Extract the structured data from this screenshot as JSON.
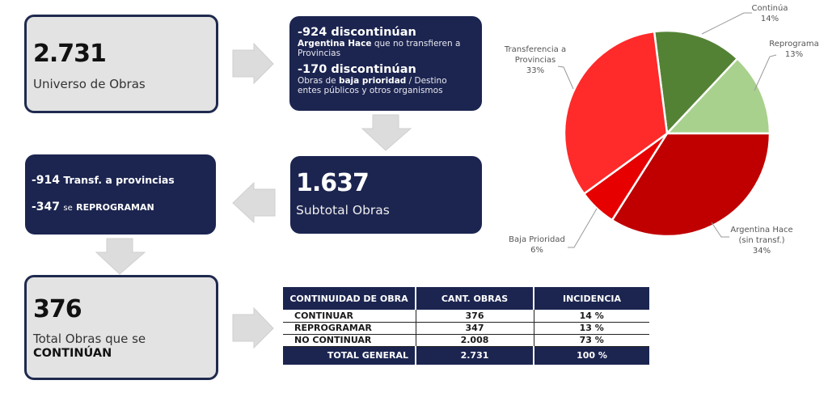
{
  "universe": {
    "value": "2.731",
    "label": "Universo de Obras"
  },
  "discontinued": {
    "item1": {
      "heading": "-924 discontinúan",
      "bold": "Argentina Hace",
      "rest1": " que no transfieren a",
      "rest2": "Provincias"
    },
    "item2": {
      "heading": "-170 discontinúan",
      "pre": "Obras de ",
      "bold": "baja prioridad",
      "rest1": " / Destino",
      "rest2": "entes públicos y otros organismos"
    }
  },
  "subtotal": {
    "value": "1.637",
    "label": "Subtotal Obras"
  },
  "adjustments": {
    "item1": {
      "number": "-914",
      "text": "Transf. a provincias"
    },
    "item2": {
      "number": "-347",
      "small": "se",
      "text": "REPROGRAMAN"
    }
  },
  "total": {
    "value": "376",
    "label": "Total Obras que se",
    "label_bold": "CONTINÚAN"
  },
  "table": {
    "headers": [
      "CONTINUIDAD DE OBRA",
      "CANT. OBRAS",
      "INCIDENCIA"
    ],
    "rows": [
      [
        "CONTINUAR",
        "376",
        "14 %"
      ],
      [
        "REPROGRAMAR",
        "347",
        "13 %"
      ],
      [
        "NO CONTINUAR",
        "2.008",
        "73 %"
      ]
    ],
    "total": [
      "TOTAL GENERAL",
      "2.731",
      "100 %"
    ]
  },
  "chart_data": {
    "type": "pie",
    "title": "",
    "slices": [
      {
        "label": "Continúa",
        "value": 14,
        "pct_label": "14%",
        "color": "#548235"
      },
      {
        "label": "Reprograma",
        "value": 13,
        "pct_label": "13%",
        "color": "#a9d18e"
      },
      {
        "label": "Argentina Hace (sin transf.)",
        "label_line1": "Argentina Hace",
        "label_line2": "(sin transf.)",
        "value": 34,
        "pct_label": "34%",
        "color": "#c00000"
      },
      {
        "label": "Baja Prioridad",
        "value": 6,
        "pct_label": "6%",
        "color": "#e60000"
      },
      {
        "label": "Transferencia a Provincias",
        "label_line1": "Transferencia a",
        "label_line2": "Provincias",
        "value": 33,
        "pct_label": "33%",
        "color": "#ff2a2a"
      }
    ]
  },
  "colors": {
    "navy": "#1c2550",
    "box_light": "#e3e3e3",
    "arrow": "#d9d9d9"
  }
}
